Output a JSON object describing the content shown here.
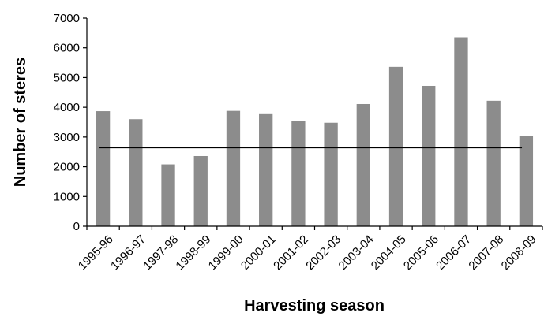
{
  "chart_data": {
    "type": "bar",
    "title": "",
    "xlabel": "Harvesting season",
    "ylabel": "Number of steres",
    "categories": [
      "1995-96",
      "1996-97",
      "1997-98",
      "1998-99",
      "1999-00",
      "2000-01",
      "2001-02",
      "2002-03",
      "2003-04",
      "2004-05",
      "2005-06",
      "2006-07",
      "2007-08",
      "2008-09"
    ],
    "values": [
      3870,
      3600,
      2080,
      2360,
      3880,
      3770,
      3540,
      3480,
      4110,
      5360,
      4720,
      6350,
      4220,
      3040
    ],
    "reference_line": 2650,
    "ylim": [
      0,
      7000
    ],
    "yticks": [
      0,
      1000,
      2000,
      3000,
      4000,
      5000,
      6000,
      7000
    ],
    "grid": false,
    "legend": "none",
    "colors": {
      "bar": "#8c8c8c",
      "reference_line": "#000000",
      "axis": "#000000",
      "text": "#000000"
    }
  }
}
